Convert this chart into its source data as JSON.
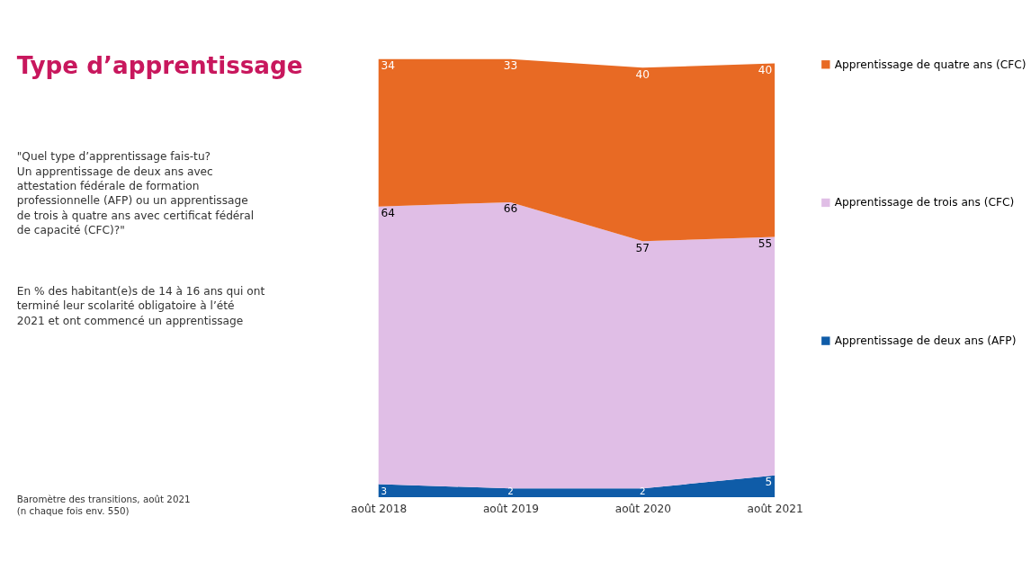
{
  "chart_data": {
    "type": "area",
    "title": "Type  d’apprentissage",
    "subtitle": "\"Quel type d’apprentissage fais-tu?\nUn apprentissage de deux ans avec\nattestation fédérale  de formation\nprofessionnelle (AFP) ou un apprentissage\nde trois à quatre ans avec certificat fédéral\nde capacité (CFC)?\"",
    "annotations": [
      "En % des habitant(e)s de 14 à 16 ans qui ont\nterminé leur scolarité obligatoire à l’été\n2021 et ont commencé un apprentissage",
      "Baromètre des transitions, août 2021\n(n chaque fois env. 550)"
    ],
    "categories": [
      "août 2018",
      "août 2019",
      "août 2020",
      "août 2021"
    ],
    "stacked": true,
    "data_labels": true,
    "legend": "right",
    "grid": false,
    "series": [
      {
        "name": "Apprentissage de deux ans (AFP)",
        "color": "#0f5ca8",
        "values": [
          3,
          2,
          2,
          5
        ]
      },
      {
        "name": "Apprentissage de trois ans (CFC)",
        "color": "#e0bee6",
        "values": [
          64,
          66,
          57,
          55
        ]
      },
      {
        "name": "Apprentissage de quatre ans (CFC)",
        "color": "#e86a24",
        "values": [
          34,
          33,
          40,
          40
        ]
      }
    ]
  }
}
